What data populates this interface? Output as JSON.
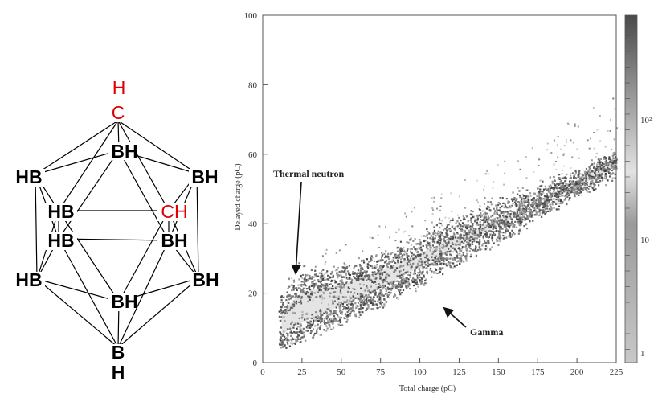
{
  "molecule": {
    "top_h": "H",
    "top_c": "C",
    "labels": {
      "bh_upper": "BH",
      "hb_left": "HB",
      "bh_right": "BH",
      "hb_mid": "HB",
      "ch_right": "CH",
      "hb_mid2": "HB",
      "bh_mid2": "BH",
      "hb_low": "HB",
      "bh_low": "BH",
      "bh_bottom": "BH",
      "b_bottom": "B",
      "h_bottom": "H"
    }
  },
  "chart_data": {
    "type": "heatmap",
    "title": "",
    "xlabel": "Total charge (pC)",
    "ylabel": "Delayed charge (pC)",
    "xlim": [
      0,
      225
    ],
    "ylim": [
      0,
      100
    ],
    "x_ticks": [
      "0",
      "25",
      "50",
      "75",
      "100",
      "125",
      "150",
      "175",
      "200",
      "225"
    ],
    "y_ticks": [
      "0",
      "20",
      "40",
      "60",
      "80",
      "100"
    ],
    "colorbar": {
      "scale": "log",
      "range": [
        1,
        200
      ],
      "tick_labels": [
        "1",
        "10",
        "10²"
      ],
      "colors": {
        "low": "#c8c8c8",
        "mid": "#e6e6e6",
        "high": "#4a4a4a"
      }
    },
    "grid": false,
    "annotations": [
      {
        "text": "Thermal neutron",
        "arrow_to": [
          20,
          26
        ]
      },
      {
        "text": "Gamma",
        "arrow_to": [
          115,
          16
        ]
      }
    ],
    "bands": [
      {
        "name": "",
        "x": [
          10,
          25,
          50,
          75,
          100,
          125,
          150,
          175,
          200,
          225
        ],
        "y": [
          15,
          22,
          24,
          28,
          33,
          38,
          43,
          48,
          52,
          58
        ]
      },
      {
        "name": "",
        "x": [
          10,
          25,
          50,
          75,
          100,
          125,
          150,
          175,
          200,
          225
        ],
        "y": [
          6,
          10,
          15,
          20,
          26,
          32,
          38,
          45,
          51,
          58
        ]
      }
    ]
  }
}
